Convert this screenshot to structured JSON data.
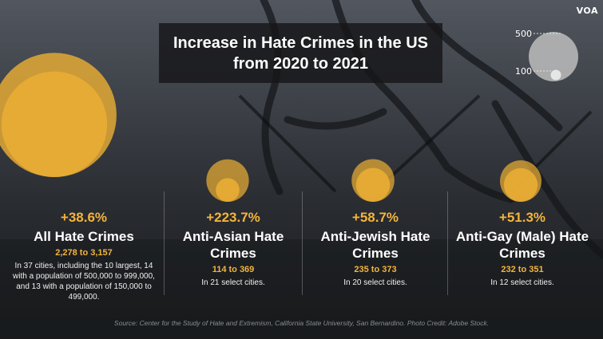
{
  "logo": "VOA",
  "title": {
    "line1": "Increase in Hate Crimes in the US",
    "line2": "from 2020 to 2021"
  },
  "legend": {
    "large_label": "500",
    "small_label": "100",
    "large_value": 500,
    "small_value": 100
  },
  "colors": {
    "accent": "#f4b43c",
    "bubble": "#e9ad34"
  },
  "chart_data": {
    "type": "bubble-comparison",
    "title": "Increase in Hate Crimes in the US from 2020 to 2021",
    "categories": [
      "All Hate Crimes",
      "Anti-Asian Hate Crimes",
      "Anti-Jewish Hate Crimes",
      "Anti-Gay (Male) Hate Crimes"
    ],
    "series": [
      {
        "name": "2020",
        "values": [
          2278,
          114,
          235,
          232
        ]
      },
      {
        "name": "2021",
        "values": [
          3157,
          369,
          373,
          351
        ]
      }
    ],
    "items": [
      {
        "percent": "+38.6%",
        "category": "All Hate Crimes",
        "from": 2278,
        "to": 3157,
        "range_text": "2,278 to 3,157",
        "note": "In 37 cities, including the 10 largest, 14 with a population of 500,000 to 999,000, and 13 with a population of 150,000 to 499,000."
      },
      {
        "percent": "+223.7%",
        "category": "Anti-Asian Hate Crimes",
        "from": 114,
        "to": 369,
        "range_text": "114 to 369",
        "note": "In 21 select cities."
      },
      {
        "percent": "+58.7%",
        "category": "Anti-Jewish Hate Crimes",
        "from": 235,
        "to": 373,
        "range_text": "235 to 373",
        "note": "In 20 select cities."
      },
      {
        "percent": "+51.3%",
        "category": "Anti-Gay (Male) Hate Crimes",
        "from": 232,
        "to": 351,
        "range_text": "232 to 351",
        "note": "In 12 select cities."
      }
    ]
  },
  "source": "Source: Center for the Study of Hate and Extremism, California State University, San Bernardino. Photo Credit: Adobe Stock."
}
